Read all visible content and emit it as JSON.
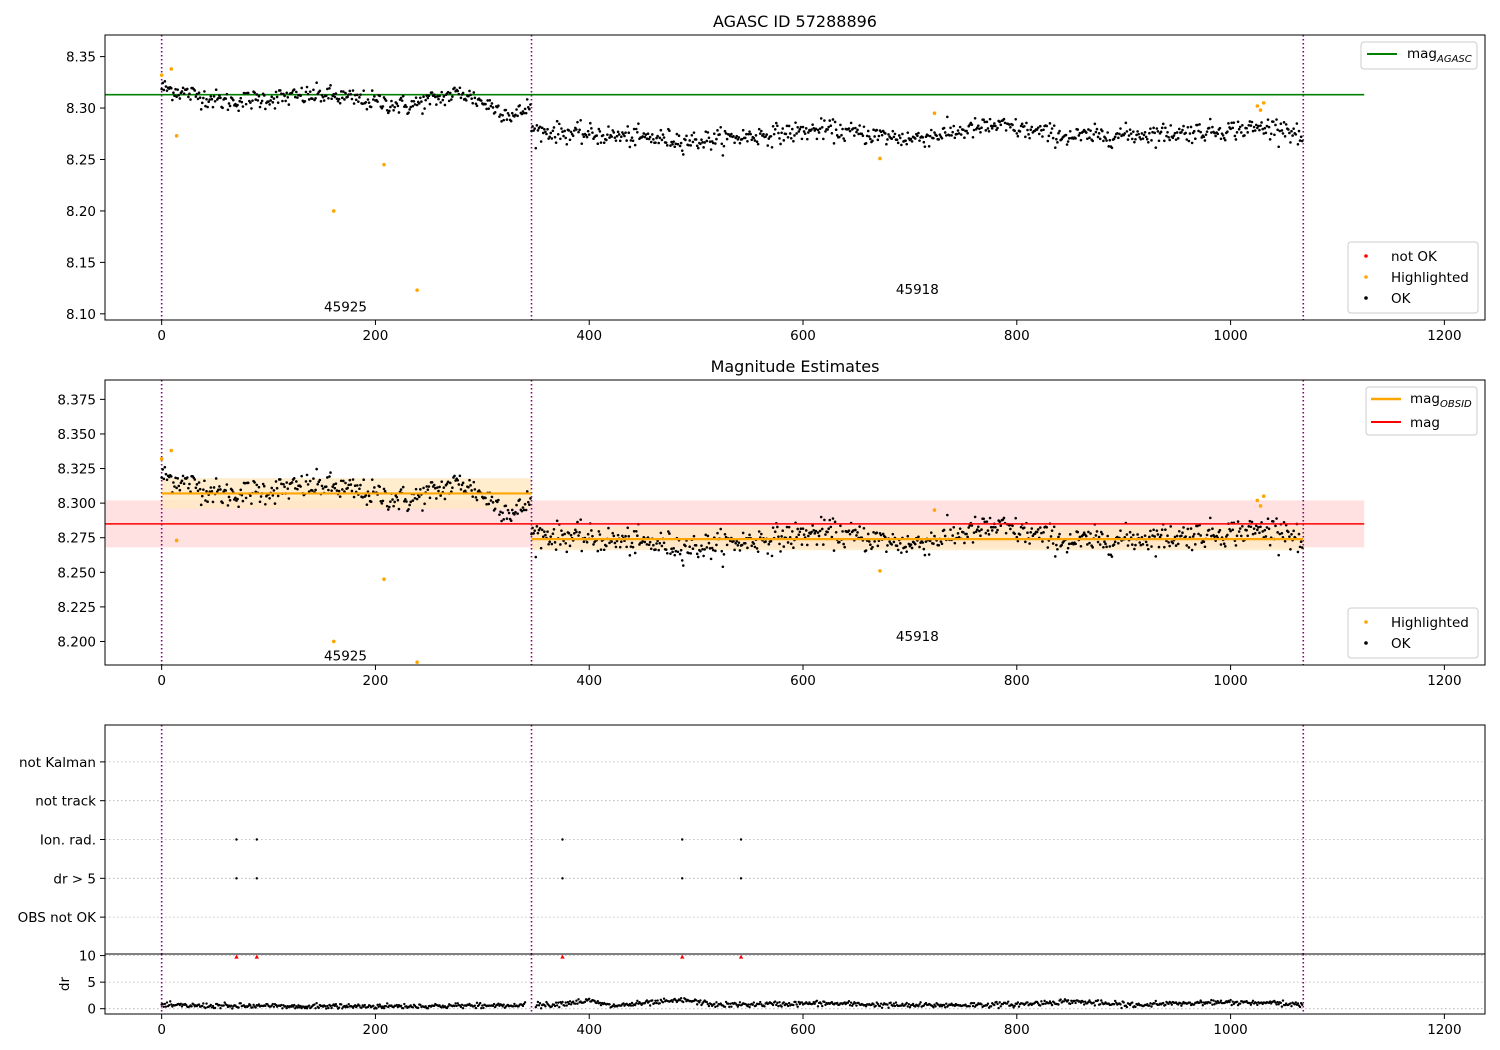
{
  "figure": {
    "panels": {
      "p1": {
        "title": "AGASC ID 57288896"
      },
      "p2": {
        "title": "Magnitude Estimates"
      },
      "p3": {
        "title": ""
      }
    }
  },
  "colors": {
    "ok": "#000000",
    "highlighted": "#ffa500",
    "not_ok": "#ff0000",
    "agasc_line": "#008000",
    "obsid_line": "#ffa500",
    "mag_line": "#ff0000",
    "obsid_boundary": "#800080",
    "band_obsid": "#ffe8c0",
    "band_mag": "#ffdede",
    "gridline": "#b0b0b0"
  },
  "chart_data": [
    {
      "type": "scatter",
      "panel": "p1",
      "title": "AGASC ID 57288896",
      "xlabel": "",
      "ylabel": "",
      "xlim": [
        -53,
        1238
      ],
      "ylim": [
        8.094,
        8.371
      ],
      "xticks": [
        0,
        200,
        400,
        600,
        800,
        1000,
        1200
      ],
      "yticks": [
        8.1,
        8.15,
        8.2,
        8.25,
        8.3,
        8.35
      ],
      "ytick_labels": [
        "8.10",
        "8.15",
        "8.20",
        "8.25",
        "8.30",
        "8.35"
      ],
      "obsid_boundaries": [
        0,
        346,
        1068
      ],
      "obsid_labels": [
        {
          "text": "45925",
          "x": 172,
          "y": 8.107
        },
        {
          "text": "45918",
          "x": 707,
          "y": 8.124
        }
      ],
      "reference_lines": [
        {
          "name": "mag_AGASC",
          "y": 8.313,
          "x_range": [
            -53,
            1125
          ],
          "color": "#008000"
        }
      ],
      "segments": [
        {
          "obsid": "45925",
          "x_range": [
            0,
            345
          ],
          "mean": 8.309,
          "noise": 0.006,
          "trend": [
            [
              0,
              8.32
            ],
            [
              60,
              8.306
            ],
            [
              150,
              8.313
            ],
            [
              230,
              8.302
            ],
            [
              280,
              8.315
            ],
            [
              330,
              8.292
            ],
            [
              346,
              8.303
            ]
          ]
        },
        {
          "obsid": "45918",
          "x_range": [
            346,
            1067
          ],
          "mean": 8.274,
          "noise": 0.006,
          "trend": [
            [
              346,
              8.278
            ],
            [
              500,
              8.268
            ],
            [
              620,
              8.279
            ],
            [
              700,
              8.27
            ],
            [
              780,
              8.283
            ],
            [
              850,
              8.272
            ],
            [
              950,
              8.276
            ],
            [
              1050,
              8.282
            ],
            [
              1067,
              8.27
            ]
          ]
        }
      ],
      "highlighted_points": [
        [
          0,
          8.332
        ],
        [
          9,
          8.338
        ],
        [
          14,
          8.273
        ],
        [
          161,
          8.2
        ],
        [
          208,
          8.245
        ],
        [
          239,
          8.123
        ],
        [
          672,
          8.251
        ],
        [
          723,
          8.295
        ],
        [
          1025,
          8.302
        ],
        [
          1028,
          8.298
        ],
        [
          1031,
          8.305
        ]
      ],
      "series": [
        {
          "name": "not OK",
          "color": "#ff0000",
          "marker": "dot"
        },
        {
          "name": "Highlighted",
          "color": "#ffa500",
          "marker": "dot"
        },
        {
          "name": "OK",
          "color": "#000000",
          "marker": "dot"
        }
      ],
      "legend_main": {
        "position": "lower-right",
        "entries": [
          "not OK",
          "Highlighted",
          "OK"
        ]
      },
      "legend_lines": {
        "position": "upper-right",
        "entries": [
          {
            "base": "mag",
            "sub": "AGASC",
            "color": "#008000"
          }
        ]
      }
    },
    {
      "type": "scatter",
      "panel": "p2",
      "title": "Magnitude Estimates",
      "xlabel": "",
      "ylabel": "",
      "xlim": [
        -53,
        1238
      ],
      "ylim": [
        8.183,
        8.389
      ],
      "xticks": [
        0,
        200,
        400,
        600,
        800,
        1000,
        1200
      ],
      "yticks": [
        8.2,
        8.225,
        8.25,
        8.275,
        8.3,
        8.325,
        8.35,
        8.375
      ],
      "ytick_labels": [
        "8.200",
        "8.225",
        "8.250",
        "8.275",
        "8.300",
        "8.325",
        "8.350",
        "8.375"
      ],
      "obsid_boundaries": [
        0,
        346,
        1068
      ],
      "obsid_labels": [
        {
          "text": "45925",
          "x": 172,
          "y": 8.19
        },
        {
          "text": "45918",
          "x": 707,
          "y": 8.204
        }
      ],
      "mag": {
        "y": 8.285,
        "band": [
          8.268,
          8.302
        ],
        "x_range": [
          -53,
          1125
        ]
      },
      "mag_obsid": [
        {
          "y": 8.307,
          "band": [
            8.296,
            8.318
          ],
          "x_range": [
            0,
            346
          ]
        },
        {
          "y": 8.274,
          "band": [
            8.266,
            8.283
          ],
          "x_range": [
            346,
            1068
          ]
        }
      ],
      "segments": [
        {
          "obsid": "45925",
          "x_range": [
            0,
            345
          ],
          "mean": 8.309,
          "noise": 0.006,
          "trend": [
            [
              0,
              8.32
            ],
            [
              60,
              8.306
            ],
            [
              150,
              8.313
            ],
            [
              230,
              8.302
            ],
            [
              280,
              8.315
            ],
            [
              330,
              8.292
            ],
            [
              346,
              8.303
            ]
          ]
        },
        {
          "obsid": "45918",
          "x_range": [
            346,
            1067
          ],
          "mean": 8.274,
          "noise": 0.006,
          "trend": [
            [
              346,
              8.278
            ],
            [
              500,
              8.268
            ],
            [
              620,
              8.279
            ],
            [
              700,
              8.27
            ],
            [
              780,
              8.283
            ],
            [
              850,
              8.272
            ],
            [
              950,
              8.276
            ],
            [
              1050,
              8.282
            ],
            [
              1067,
              8.27
            ]
          ]
        }
      ],
      "highlighted_points": [
        [
          0,
          8.332
        ],
        [
          9,
          8.338
        ],
        [
          14,
          8.273
        ],
        [
          161,
          8.2
        ],
        [
          208,
          8.245
        ],
        [
          239,
          8.185
        ],
        [
          672,
          8.251
        ],
        [
          723,
          8.295
        ],
        [
          1025,
          8.302
        ],
        [
          1028,
          8.298
        ],
        [
          1031,
          8.305
        ]
      ],
      "series": [
        {
          "name": "Highlighted",
          "color": "#ffa500",
          "marker": "dot"
        },
        {
          "name": "OK",
          "color": "#000000",
          "marker": "dot"
        }
      ],
      "legend_main": {
        "position": "lower-right",
        "entries": [
          "Highlighted",
          "OK"
        ]
      },
      "legend_lines": {
        "position": "upper-right",
        "entries": [
          {
            "base": "mag",
            "sub": "OBSID",
            "color": "#ffa500"
          },
          {
            "base": "mag",
            "sub": "",
            "color": "#ff0000"
          }
        ]
      }
    },
    {
      "type": "scatter",
      "panel": "p3",
      "title": "",
      "xlabel": "",
      "ylabel": "",
      "xlim": [
        -53,
        1238
      ],
      "categories": [
        "OBS not OK",
        "dr > 5",
        "Ion. rad.",
        "not track",
        "not Kalman"
      ],
      "flag_points": {
        "dr > 5": [
          70,
          89,
          375,
          487,
          542
        ],
        "Ion. rad.": [
          70,
          89,
          375,
          487,
          542
        ]
      },
      "obsid_boundaries": [
        0,
        346,
        1068
      ]
    },
    {
      "type": "scatter",
      "panel": "p4",
      "xlabel": "",
      "ylabel": "dr",
      "xlim": [
        -53,
        1238
      ],
      "ylim": [
        -1,
        10.3
      ],
      "xticks": [
        0,
        200,
        400,
        600,
        800,
        1000,
        1200
      ],
      "yticks": [
        0,
        5,
        10
      ],
      "ytick_labels": [
        "0",
        "5",
        "10"
      ],
      "obsid_boundaries": [
        0,
        346,
        1068
      ],
      "clipped_points": [
        70,
        89,
        375,
        487,
        542
      ],
      "trend": [
        [
          0,
          0.6
        ],
        [
          150,
          0.4
        ],
        [
          250,
          0.5
        ],
        [
          360,
          0.7
        ],
        [
          400,
          1.5
        ],
        [
          420,
          0.5
        ],
        [
          490,
          1.6
        ],
        [
          520,
          0.7
        ],
        [
          620,
          1.0
        ],
        [
          700,
          0.6
        ],
        [
          800,
          0.8
        ],
        [
          850,
          1.4
        ],
        [
          900,
          0.7
        ],
        [
          1000,
          1.2
        ],
        [
          1067,
          0.8
        ]
      ]
    }
  ]
}
